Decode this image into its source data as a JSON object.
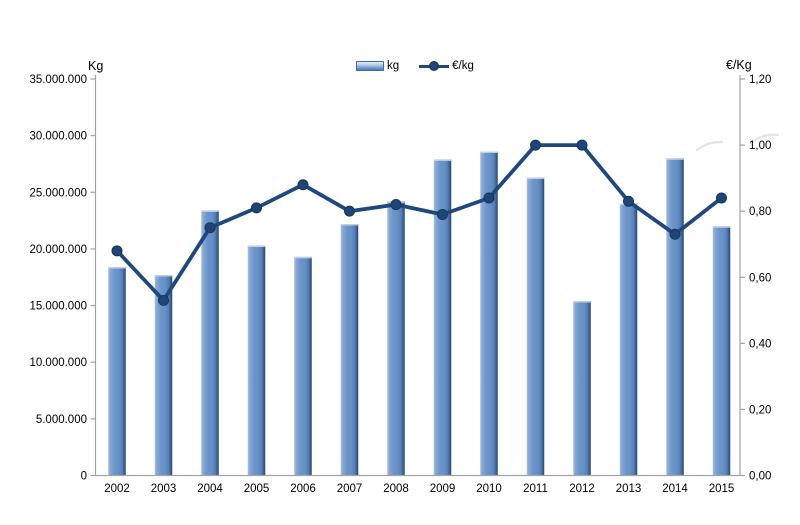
{
  "chart_data": {
    "type": "bar+line",
    "categories": [
      "2002",
      "2003",
      "2004",
      "2005",
      "2006",
      "2007",
      "2008",
      "2009",
      "2010",
      "2011",
      "2012",
      "2013",
      "2014",
      "2015"
    ],
    "series": [
      {
        "name": "kg",
        "type": "bar",
        "axis": "left",
        "values": [
          18400000,
          17700000,
          23400000,
          20300000,
          19300000,
          22200000,
          24200000,
          27900000,
          28600000,
          26300000,
          15400000,
          24000000,
          28000000,
          22000000
        ]
      },
      {
        "name": "€/kg",
        "type": "line",
        "axis": "right",
        "values": [
          0.68,
          0.53,
          0.75,
          0.81,
          0.88,
          0.8,
          0.82,
          0.79,
          0.84,
          1.0,
          1.0,
          0.83,
          0.73,
          0.84
        ]
      }
    ],
    "left_axis": {
      "title": "Kg",
      "min": 0,
      "max": 35000000,
      "tick_step": 5000000,
      "tick_labels": [
        "35.000.000",
        "30.000.000",
        "25.000.000",
        "20.000.000",
        "15.000.000",
        "10.000.000",
        "5.000.000",
        "0"
      ]
    },
    "right_axis": {
      "title": "€/Kg",
      "min": 0,
      "max": 1.2,
      "tick_step": 0.2,
      "tick_labels": [
        "1,20",
        "1,00",
        "0,80",
        "0,60",
        "0,40",
        "0,20",
        "0,00"
      ]
    },
    "legend_position": "top",
    "grid": false
  },
  "colors": {
    "bar_light": "#a7bedf",
    "bar_mid": "#6690c6",
    "bar_dark": "#27456b",
    "bar_cap": "#c6d6eb",
    "line": "#1f497d",
    "marker": "#1d4677",
    "marker_stroke": "#16365c",
    "axis": "#a3a3a3",
    "tick_text": "#000000",
    "artifact": "#cccccc"
  }
}
